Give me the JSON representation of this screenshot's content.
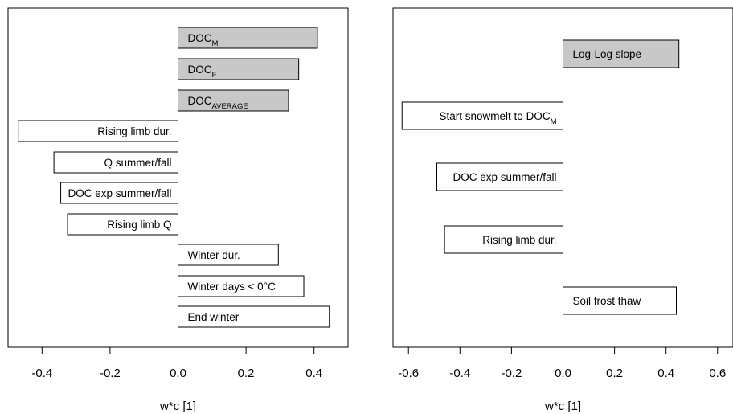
{
  "chart_data": [
    {
      "type": "bar",
      "orientation": "horizontal",
      "xlabel": "w*c [1]",
      "xlim": [
        -0.5,
        0.5
      ],
      "xticks": [
        -0.4,
        -0.2,
        0.0,
        0.2,
        0.4
      ],
      "xtick_labels": [
        "-0.4",
        "-0.2",
        "0.0",
        "0.2",
        "0.4"
      ],
      "grid": false,
      "bars": [
        {
          "label": "DOC",
          "sub": "M",
          "value": 0.41,
          "fill": "#c8c8c8"
        },
        {
          "label": "DOC",
          "sub": "F",
          "value": 0.355,
          "fill": "#c8c8c8"
        },
        {
          "label": "DOC",
          "sub": "AVERAGE",
          "value": 0.325,
          "fill": "#c8c8c8"
        },
        {
          "label": "Rising limb dur.",
          "sub": "",
          "value": -0.47,
          "fill": "#ffffff"
        },
        {
          "label": "Q summer/fall",
          "sub": "",
          "value": -0.365,
          "fill": "#ffffff"
        },
        {
          "label": "DOC exp summer/fall",
          "sub": "",
          "value": -0.345,
          "fill": "#ffffff"
        },
        {
          "label": "Rising limb Q",
          "sub": "",
          "value": -0.325,
          "fill": "#ffffff"
        },
        {
          "label": "Winter dur.",
          "sub": "",
          "value": 0.295,
          "fill": "#ffffff"
        },
        {
          "label": "Winter days < 0°C",
          "sub": "",
          "value": 0.37,
          "fill": "#ffffff"
        },
        {
          "label": "End winter",
          "sub": "",
          "value": 0.445,
          "fill": "#ffffff"
        }
      ]
    },
    {
      "type": "bar",
      "orientation": "horizontal",
      "xlabel": "w*c [1]",
      "xlim": [
        -0.66,
        0.66
      ],
      "xticks": [
        -0.6,
        -0.4,
        -0.2,
        0.0,
        0.2,
        0.4,
        0.6
      ],
      "xtick_labels": [
        "-0.6",
        "-0.4",
        "-0.2",
        "0.0",
        "0.2",
        "0.4",
        "0.6"
      ],
      "grid": false,
      "bars": [
        {
          "label": "Log-Log slope",
          "sub": "",
          "value": 0.45,
          "fill": "#c8c8c8"
        },
        {
          "label": "Start snowmelt to DOC",
          "sub": "M",
          "value": -0.625,
          "fill": "#ffffff"
        },
        {
          "label": "DOC exp summer/fall",
          "sub": "",
          "value": -0.49,
          "fill": "#ffffff"
        },
        {
          "label": "Rising limb dur.",
          "sub": "",
          "value": -0.46,
          "fill": "#ffffff"
        },
        {
          "label": "Soil frost thaw",
          "sub": "",
          "value": 0.44,
          "fill": "#ffffff"
        }
      ]
    }
  ]
}
